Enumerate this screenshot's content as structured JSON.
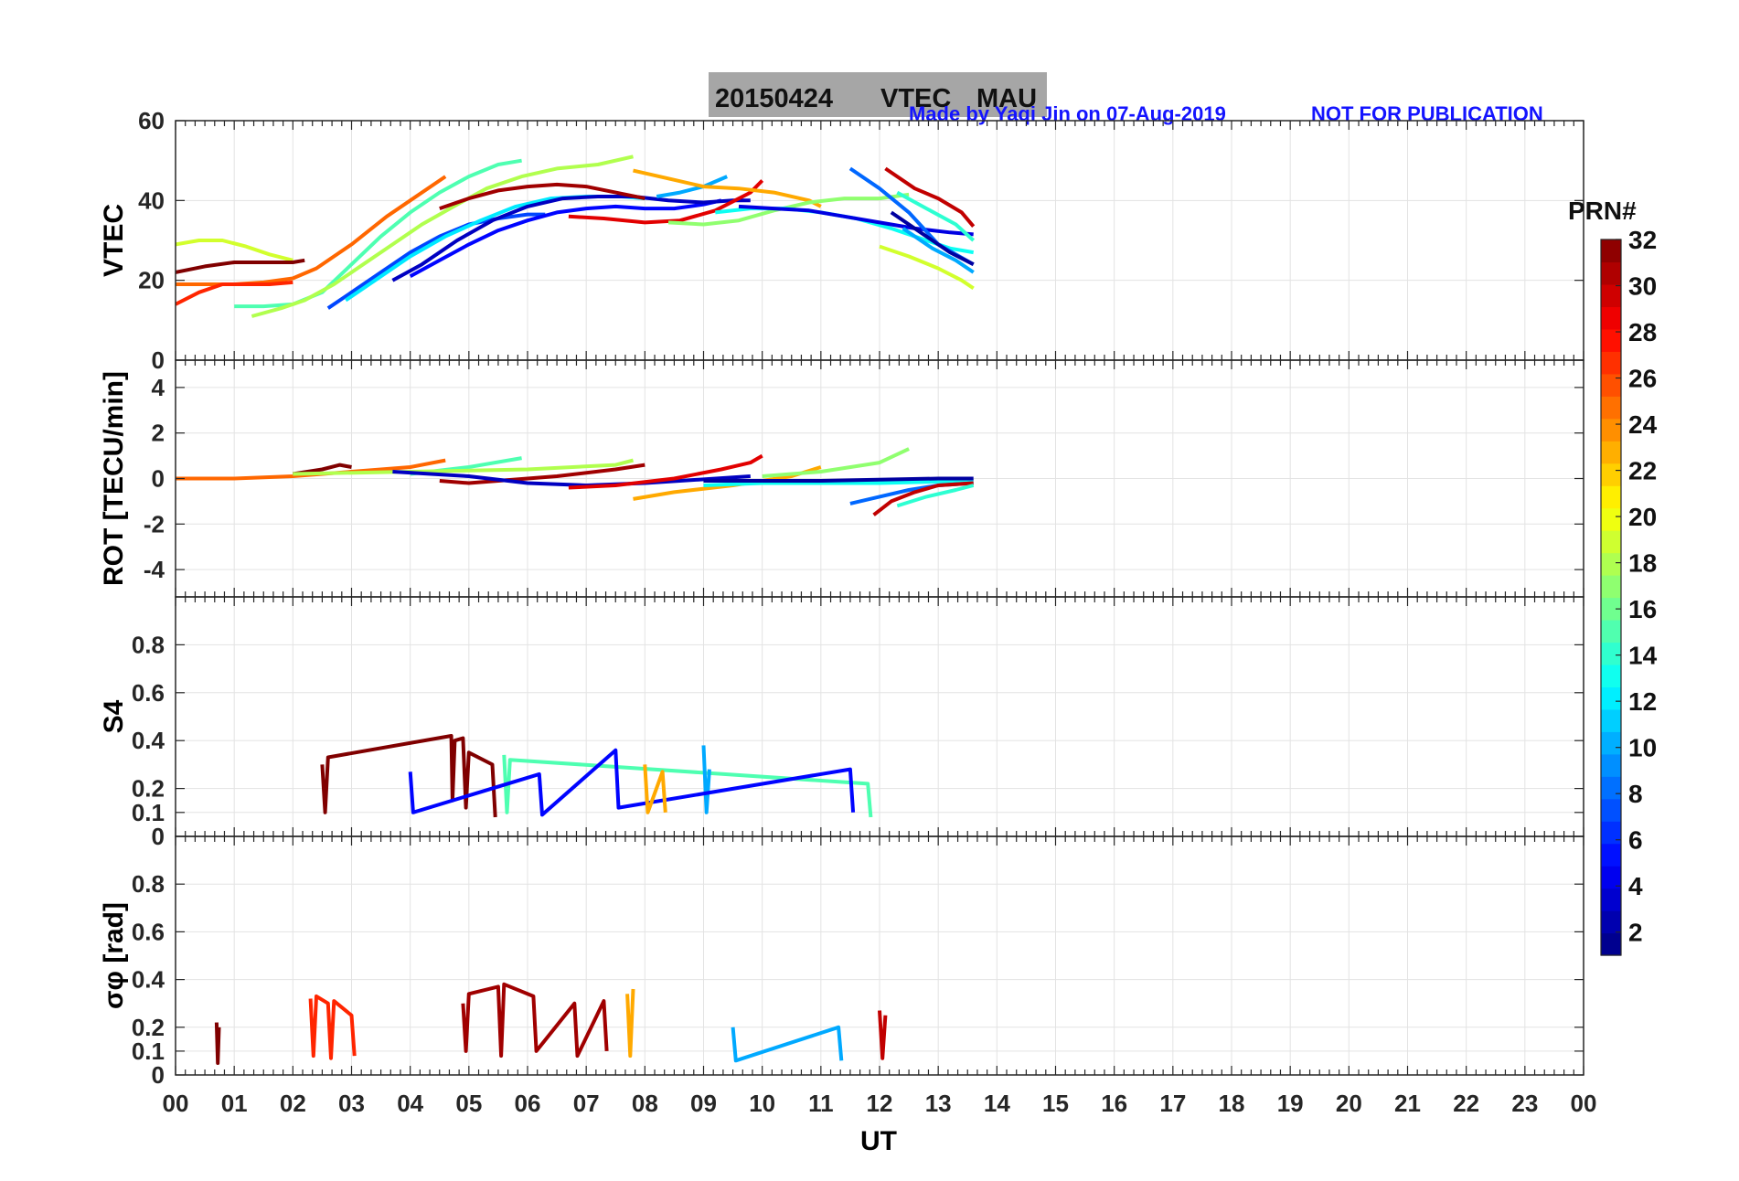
{
  "chart_data": {
    "type": "line",
    "title": {
      "date": "20150424",
      "kind": "VTEC",
      "station": "MAU"
    },
    "credit": "Made by Yaqi Jin on 07-Aug-2019",
    "notice": "NOT FOR PUBLICATION",
    "xlabel": "UT",
    "x_tick_labels": [
      "00",
      "01",
      "02",
      "03",
      "04",
      "05",
      "06",
      "07",
      "08",
      "09",
      "10",
      "11",
      "12",
      "13",
      "14",
      "15",
      "16",
      "17",
      "18",
      "19",
      "20",
      "21",
      "22",
      "23",
      "00"
    ],
    "xlim": [
      0,
      24
    ],
    "colorbar": {
      "title": "PRN#",
      "range": [
        1,
        32
      ],
      "tick_labels": [
        "2",
        "4",
        "6",
        "8",
        "10",
        "12",
        "14",
        "16",
        "18",
        "20",
        "22",
        "24",
        "26",
        "28",
        "30",
        "32"
      ],
      "tick_values": [
        2,
        4,
        6,
        8,
        10,
        12,
        14,
        16,
        18,
        20,
        22,
        24,
        26,
        28,
        30,
        32
      ]
    },
    "panels": [
      {
        "id": "vtec",
        "ylabel": "VTEC",
        "ylim": [
          0,
          60
        ],
        "yticks": [
          0,
          20,
          40,
          60
        ],
        "ytick_labels": [
          "0",
          "20",
          "40",
          "60"
        ],
        "series": [
          {
            "prn": 19,
            "x": [
              0,
              0.4,
              0.8,
              1.2,
              1.6,
              2.0
            ],
            "y": [
              29,
              30,
              30,
              28.5,
              26.5,
              25
            ]
          },
          {
            "prn": 32,
            "x": [
              0,
              0.5,
              1.0,
              1.5,
              2.0,
              2.2
            ],
            "y": [
              22,
              23.5,
              24.5,
              24.5,
              24.5,
              25
            ]
          },
          {
            "prn": 25,
            "x": [
              0,
              0.5,
              1.0,
              1.5,
              2.0,
              2.4,
              3.0,
              3.6,
              4.0,
              4.6
            ],
            "y": [
              19,
              19,
              19,
              19.5,
              20.5,
              23,
              29,
              36,
              40,
              46
            ]
          },
          {
            "prn": 27,
            "x": [
              0,
              0.4,
              0.8,
              1.2,
              1.6,
              2.0
            ],
            "y": [
              14,
              17,
              19,
              19,
              19,
              19.5
            ]
          },
          {
            "prn": 15,
            "x": [
              1.0,
              1.5,
              2.0,
              2.5,
              3.0,
              3.5,
              4.0,
              4.5,
              5.0,
              5.5,
              5.9
            ],
            "y": [
              13.5,
              13.5,
              14,
              17,
              24,
              31,
              37,
              42,
              46,
              49,
              50
            ]
          },
          {
            "prn": 18,
            "x": [
              1.3,
              1.8,
              2.2,
              2.7,
              3.2,
              3.7,
              4.2,
              4.8,
              5.3,
              5.9,
              6.5,
              7.2,
              7.8
            ],
            "y": [
              11,
              13,
              15,
              19,
              24,
              29,
              34,
              39,
              43,
              46,
              48,
              49,
              51
            ]
          },
          {
            "prn": 7,
            "x": [
              2.6,
              3.0,
              3.5,
              4.0,
              4.5,
              5.0,
              5.5,
              6.0,
              6.3
            ],
            "y": [
              13,
              17,
              22,
              27,
              31,
              34,
              35.5,
              36.5,
              36.5
            ]
          },
          {
            "prn": 12,
            "x": [
              2.9,
              3.4,
              4.0,
              4.6,
              5.2,
              5.8,
              6.4,
              7.0,
              7.6,
              8.0
            ],
            "y": [
              15,
              20,
              26,
              31,
              35,
              38.5,
              40.5,
              41,
              41,
              40.5
            ]
          },
          {
            "prn": 5,
            "x": [
              4.0,
              4.5,
              5.0,
              5.5,
              6.0,
              6.5,
              7.0,
              7.5,
              8.0,
              8.5,
              9.0,
              9.3
            ],
            "y": [
              21,
              25,
              29,
              32.5,
              35,
              37,
              38,
              38.5,
              38,
              38,
              39,
              40
            ]
          },
          {
            "prn": 3,
            "x": [
              3.7,
              4.2,
              4.8,
              5.4,
              6.0,
              6.6,
              7.2,
              7.8,
              8.4,
              9.0,
              9.5,
              9.8
            ],
            "y": [
              20,
              24,
              30,
              35,
              38.5,
              40.5,
              41,
              41,
              40,
              39.5,
              40,
              40
            ]
          },
          {
            "prn": 31,
            "x": [
              4.5,
              5.0,
              5.5,
              6.0,
              6.5,
              7.0,
              7.5,
              8.0
            ],
            "y": [
              38,
              40.5,
              42.5,
              43.5,
              44,
              43.5,
              42,
              40.5
            ]
          },
          {
            "prn": 29,
            "x": [
              6.7,
              7.3,
              8.0,
              8.6,
              9.2,
              9.8,
              10.0
            ],
            "y": [
              36,
              35.5,
              34.5,
              35,
              37.5,
              42,
              45
            ]
          },
          {
            "prn": 10,
            "x": [
              8.2,
              8.6,
              9.0,
              9.4
            ],
            "y": [
              41,
              42,
              43.5,
              46
            ]
          },
          {
            "prn": 23,
            "x": [
              7.8,
              8.4,
              9.0,
              9.6,
              10.2,
              10.8,
              11.0
            ],
            "y": [
              47.5,
              45.5,
              43.5,
              43,
              42,
              40,
              38.5
            ]
          },
          {
            "prn": 17,
            "x": [
              8.4,
              9.0,
              9.6,
              10.2,
              10.8,
              11.4,
              12.0,
              12.5
            ],
            "y": [
              34.5,
              34,
              35,
              37.5,
              39.5,
              40.5,
              40.5,
              41.5
            ]
          },
          {
            "prn": 13,
            "x": [
              9.2,
              9.8,
              10.4,
              11.0,
              11.6,
              12.2,
              12.8,
              13.2,
              13.6
            ],
            "y": [
              37,
              38,
              38,
              37,
              35.5,
              33,
              30,
              28,
              27
            ]
          },
          {
            "prn": 4,
            "x": [
              9.6,
              10.2,
              10.8,
              11.4,
              12.0,
              12.6,
              13.2,
              13.6
            ],
            "y": [
              38.5,
              38,
              37.5,
              36,
              34.5,
              33,
              32,
              31.5
            ]
          },
          {
            "prn": 8,
            "x": [
              11.5,
              12.0,
              12.5,
              13.0,
              13.6
            ],
            "y": [
              48,
              43,
              37,
              29,
              24
            ]
          },
          {
            "prn": 30,
            "x": [
              12.1,
              12.6,
              13.0,
              13.4,
              13.6
            ],
            "y": [
              48,
              43,
              40.5,
              37,
              33.5
            ]
          },
          {
            "prn": 14,
            "x": [
              12.3,
              12.8,
              13.3,
              13.6
            ],
            "y": [
              42,
              38,
              34,
              30
            ]
          },
          {
            "prn": 19,
            "x": [
              12.0,
              12.5,
              13.0,
              13.4,
              13.6
            ],
            "y": [
              28.5,
              26,
              23,
              20,
              18
            ]
          },
          {
            "prn": 10,
            "x": [
              12.4,
              12.9,
              13.3,
              13.6
            ],
            "y": [
              33,
              28,
              25,
              22
            ]
          },
          {
            "prn": 2,
            "x": [
              12.2,
              12.7,
              13.2,
              13.6
            ],
            "y": [
              37,
              32,
              27,
              24
            ]
          }
        ]
      },
      {
        "id": "rot",
        "ylabel": "ROT [TECU/min]",
        "ylim": [
          -5.2,
          5.2
        ],
        "yticks": [
          -4,
          -2,
          0,
          2,
          4
        ],
        "ytick_labels": [
          "-4",
          "-2",
          "0",
          "2",
          "4"
        ],
        "series": [
          {
            "prn": 25,
            "x": [
              0,
              1,
              2,
              3,
              4,
              4.6
            ],
            "y": [
              0,
              0,
              0.1,
              0.3,
              0.5,
              0.8
            ]
          },
          {
            "prn": 32,
            "x": [
              2.0,
              2.5,
              2.8,
              3.0
            ],
            "y": [
              0.2,
              0.4,
              0.6,
              0.5
            ]
          },
          {
            "prn": 15,
            "x": [
              4.0,
              5.0,
              5.9
            ],
            "y": [
              0.2,
              0.5,
              0.9
            ]
          },
          {
            "prn": 18,
            "x": [
              2.0,
              4.0,
              6.0,
              7.5,
              7.8
            ],
            "y": [
              0.2,
              0.3,
              0.4,
              0.6,
              0.8
            ]
          },
          {
            "prn": 31,
            "x": [
              4.5,
              5.0,
              5.5,
              6.5,
              7.5,
              8.0
            ],
            "y": [
              -0.1,
              -0.2,
              -0.1,
              0.1,
              0.4,
              0.6
            ]
          },
          {
            "prn": 3,
            "x": [
              3.7,
              5.0,
              6.0,
              7.0,
              8.0,
              9.8
            ],
            "y": [
              0.3,
              0.1,
              -0.2,
              -0.3,
              -0.2,
              0.1
            ]
          },
          {
            "prn": 29,
            "x": [
              6.7,
              7.5,
              8.5,
              9.3,
              9.8,
              10.0
            ],
            "y": [
              -0.4,
              -0.3,
              0.0,
              0.4,
              0.7,
              1.0
            ]
          },
          {
            "prn": 23,
            "x": [
              7.8,
              8.5,
              9.5,
              10.5,
              11.0
            ],
            "y": [
              -0.9,
              -0.6,
              -0.3,
              0.1,
              0.5
            ]
          },
          {
            "prn": 13,
            "x": [
              9.0,
              10.0,
              11.0,
              12.0,
              13.6
            ],
            "y": [
              -0.3,
              -0.2,
              -0.2,
              -0.2,
              -0.1
            ]
          },
          {
            "prn": 17,
            "x": [
              10.0,
              11.0,
              12.0,
              12.5
            ],
            "y": [
              0.1,
              0.3,
              0.7,
              1.3
            ]
          },
          {
            "prn": 8,
            "x": [
              11.5,
              12.0,
              12.5,
              13.0,
              13.6
            ],
            "y": [
              -1.1,
              -0.8,
              -0.5,
              -0.3,
              -0.2
            ]
          },
          {
            "prn": 30,
            "x": [
              11.9,
              12.2,
              12.6,
              13.0,
              13.6
            ],
            "y": [
              -1.6,
              -1.0,
              -0.6,
              -0.3,
              -0.2
            ]
          },
          {
            "prn": 14,
            "x": [
              12.3,
              12.8,
              13.3,
              13.6
            ],
            "y": [
              -1.2,
              -0.8,
              -0.5,
              -0.3
            ]
          },
          {
            "prn": 2,
            "x": [
              9.0,
              11.0,
              13.0,
              13.6
            ],
            "y": [
              -0.1,
              -0.1,
              0.0,
              0.0
            ]
          }
        ]
      },
      {
        "id": "s4",
        "ylabel": "S4",
        "ylim": [
          0,
          1.0
        ],
        "yticks": [
          0,
          0.1,
          0.2,
          0.4,
          0.6,
          0.8
        ],
        "ytick_labels": [
          "0",
          "0.1",
          "0.2",
          "0.4",
          "0.6",
          "0.8"
        ],
        "series": [
          {
            "prn": 32,
            "x": [
              2.5,
              2.55,
              2.6,
              4.7,
              4.72,
              4.76,
              4.9,
              4.95,
              5.0,
              5.4,
              5.45
            ],
            "y": [
              0.3,
              0.1,
              0.33,
              0.42,
              0.15,
              0.4,
              0.41,
              0.12,
              0.35,
              0.3,
              0.08
            ]
          },
          {
            "prn": 15,
            "x": [
              5.6,
              5.65,
              5.7,
              11.8,
              11.85
            ],
            "y": [
              0.34,
              0.1,
              0.32,
              0.22,
              0.08
            ]
          },
          {
            "prn": 10,
            "x": [
              9.0,
              9.05,
              9.1
            ],
            "y": [
              0.38,
              0.1,
              0.28
            ]
          },
          {
            "prn": 5,
            "x": [
              4.0,
              4.05,
              6.2,
              6.25,
              7.5,
              7.55,
              11.5,
              11.55
            ],
            "y": [
              0.27,
              0.1,
              0.26,
              0.09,
              0.36,
              0.12,
              0.28,
              0.1
            ]
          },
          {
            "prn": 23,
            "x": [
              8.0,
              8.05,
              8.3,
              8.35
            ],
            "y": [
              0.3,
              0.1,
              0.27,
              0.1
            ]
          }
        ]
      },
      {
        "id": "sigma_phi",
        "ylabel": "σφ [rad]",
        "ylim": [
          0,
          1.0
        ],
        "yticks": [
          0,
          0.1,
          0.2,
          0.4,
          0.6,
          0.8
        ],
        "ytick_labels": [
          "0",
          "0.1",
          "0.2",
          "0.4",
          "0.6",
          "0.8"
        ],
        "series": [
          {
            "prn": 32,
            "x": [
              0.7,
              0.72,
              0.74
            ],
            "y": [
              0.22,
              0.05,
              0.2
            ]
          },
          {
            "prn": 27,
            "x": [
              2.3,
              2.35,
              2.4,
              2.6,
              2.65,
              2.7,
              3.0,
              3.05
            ],
            "y": [
              0.32,
              0.08,
              0.33,
              0.3,
              0.07,
              0.31,
              0.25,
              0.08
            ]
          },
          {
            "prn": 31,
            "x": [
              4.9,
              4.95,
              5.0,
              5.5,
              5.55,
              5.6,
              6.1,
              6.15,
              6.8,
              6.85,
              7.3,
              7.35
            ],
            "y": [
              0.3,
              0.1,
              0.34,
              0.37,
              0.08,
              0.38,
              0.33,
              0.1,
              0.3,
              0.08,
              0.31,
              0.1
            ]
          },
          {
            "prn": 23,
            "x": [
              7.7,
              7.75,
              7.8
            ],
            "y": [
              0.34,
              0.08,
              0.36
            ]
          },
          {
            "prn": 10,
            "x": [
              9.5,
              9.55,
              11.3,
              11.35
            ],
            "y": [
              0.2,
              0.06,
              0.2,
              0.06
            ]
          },
          {
            "prn": 30,
            "x": [
              12.0,
              12.05,
              12.1
            ],
            "y": [
              0.27,
              0.07,
              0.25
            ]
          }
        ]
      }
    ]
  }
}
